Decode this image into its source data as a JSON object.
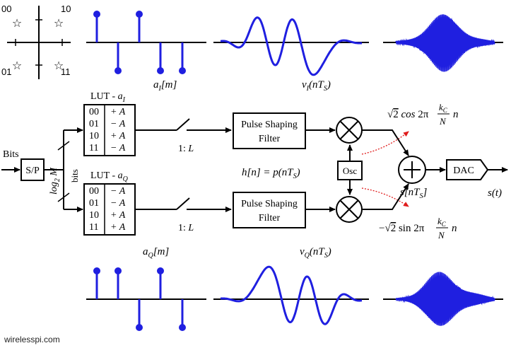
{
  "constellation": {
    "points": [
      "00",
      "10",
      "01",
      "11"
    ]
  },
  "labels": {
    "aI": "a_I[m]",
    "vI": "v_I(nT_S)",
    "aQ": "a_Q[m]",
    "vQ": "v_Q(nT_S)",
    "hn": "h[n] = p(nT_S)",
    "bits_in": "Bits",
    "sp": "S/P",
    "log2m": "log_2 M",
    "bits_side": "bits",
    "lutI": "LUT - a_I",
    "lutQ": "LUT - a_Q",
    "interp": "1: L",
    "psf_line1": "Pulse Shaping",
    "psf_line2": "Filter",
    "osc": "Osc",
    "dac": "DAC",
    "cos_carrier": "√2 cos 2π (k_C / N) n",
    "sin_carrier": "−√2 sin 2π (k_C / N) n",
    "sn": "s[nT_S]",
    "st": "s(t)",
    "site": "wirelesspi.com"
  },
  "lutI": [
    {
      "bits": "00",
      "value": "+ A"
    },
    {
      "bits": "01",
      "value": "− A"
    },
    {
      "bits": "10",
      "value": "+ A"
    },
    {
      "bits": "11",
      "value": "− A"
    }
  ],
  "lutQ": [
    {
      "bits": "00",
      "value": "− A"
    },
    {
      "bits": "01",
      "value": "− A"
    },
    {
      "bits": "10",
      "value": "+ A"
    },
    {
      "bits": "11",
      "value": "+ A"
    }
  ],
  "symbolsI": [
    1,
    -1,
    1,
    -1,
    -1
  ],
  "symbolsQ": [
    1,
    1,
    -1,
    1,
    -1
  ],
  "colors": {
    "signal": "#1f1fe0",
    "line": "#000000",
    "carrier_arrow": "#e01b1b"
  }
}
